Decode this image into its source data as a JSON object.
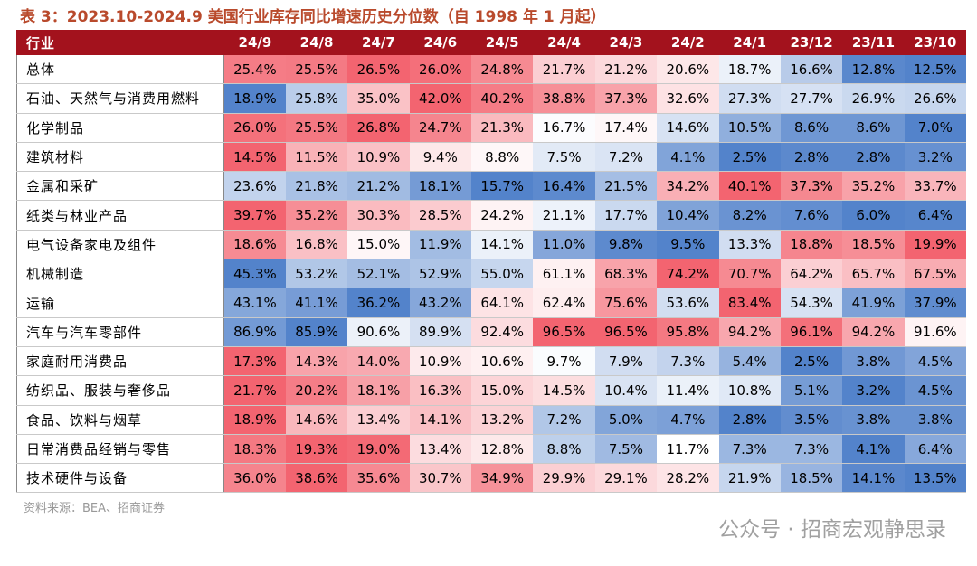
{
  "title": "表 3：2023.10-2024.9 美国行业库存同比增速历史分位数（自 1998 年 1 月起）",
  "table": {
    "header": [
      "行业",
      "24/9",
      "24/8",
      "24/7",
      "24/6",
      "24/5",
      "24/4",
      "24/3",
      "24/2",
      "24/1",
      "23/12",
      "23/11",
      "23/10"
    ],
    "rows": [
      [
        "总体",
        "25.4%",
        "25.5%",
        "26.5%",
        "26.0%",
        "24.8%",
        "21.7%",
        "21.2%",
        "20.6%",
        "18.7%",
        "16.6%",
        "12.8%",
        "12.5%"
      ],
      [
        "石油、天然气与消费用燃料",
        "18.9%",
        "25.8%",
        "35.0%",
        "42.0%",
        "40.2%",
        "38.8%",
        "37.3%",
        "32.6%",
        "27.3%",
        "27.7%",
        "26.9%",
        "26.6%"
      ],
      [
        "化学制品",
        "26.0%",
        "25.5%",
        "26.8%",
        "24.7%",
        "21.3%",
        "16.7%",
        "17.4%",
        "14.6%",
        "10.5%",
        "8.6%",
        "8.6%",
        "7.0%"
      ],
      [
        "建筑材料",
        "14.5%",
        "11.5%",
        "10.9%",
        "9.4%",
        "8.8%",
        "7.5%",
        "7.2%",
        "4.1%",
        "2.5%",
        "2.8%",
        "2.8%",
        "3.2%"
      ],
      [
        "金属和采矿",
        "23.6%",
        "21.8%",
        "21.2%",
        "18.1%",
        "15.7%",
        "16.4%",
        "21.5%",
        "34.2%",
        "40.1%",
        "37.3%",
        "35.2%",
        "33.7%"
      ],
      [
        "纸类与林业产品",
        "39.7%",
        "35.2%",
        "30.3%",
        "28.5%",
        "24.2%",
        "21.1%",
        "17.7%",
        "10.4%",
        "8.2%",
        "7.6%",
        "6.0%",
        "6.4%"
      ],
      [
        "电气设备家电及组件",
        "18.6%",
        "16.8%",
        "15.0%",
        "11.9%",
        "14.1%",
        "11.0%",
        "9.8%",
        "9.5%",
        "13.3%",
        "18.8%",
        "18.5%",
        "19.9%"
      ],
      [
        "机械制造",
        "45.3%",
        "53.2%",
        "52.1%",
        "52.9%",
        "55.0%",
        "61.1%",
        "68.3%",
        "74.2%",
        "70.7%",
        "64.2%",
        "65.7%",
        "67.5%"
      ],
      [
        "运输",
        "43.1%",
        "41.1%",
        "36.2%",
        "43.2%",
        "64.1%",
        "62.4%",
        "75.6%",
        "53.6%",
        "83.4%",
        "54.3%",
        "41.9%",
        "37.9%"
      ],
      [
        "汽车与汽车零部件",
        "86.9%",
        "85.9%",
        "90.6%",
        "89.9%",
        "92.4%",
        "96.5%",
        "96.5%",
        "95.8%",
        "94.2%",
        "96.1%",
        "94.2%",
        "91.6%"
      ],
      [
        "家庭耐用消费品",
        "17.3%",
        "14.3%",
        "14.0%",
        "10.9%",
        "10.6%",
        "9.7%",
        "7.9%",
        "7.3%",
        "5.4%",
        "2.5%",
        "3.8%",
        "4.5%"
      ],
      [
        "纺织品、服装与奢侈品",
        "21.7%",
        "20.2%",
        "18.1%",
        "16.3%",
        "15.0%",
        "14.5%",
        "10.4%",
        "11.4%",
        "10.8%",
        "5.1%",
        "3.2%",
        "4.5%"
      ],
      [
        "食品、饮料与烟草",
        "18.9%",
        "14.6%",
        "13.4%",
        "14.1%",
        "13.2%",
        "7.2%",
        "5.0%",
        "4.7%",
        "2.8%",
        "3.5%",
        "3.8%",
        "3.8%"
      ],
      [
        "日常消费品经销与零售",
        "18.3%",
        "19.3%",
        "19.0%",
        "13.4%",
        "12.8%",
        "8.8%",
        "7.5%",
        "11.7%",
        "7.3%",
        "7.3%",
        "4.1%",
        "6.4%"
      ],
      [
        "技术硬件与设备",
        "36.0%",
        "38.6%",
        "35.6%",
        "30.7%",
        "34.9%",
        "29.9%",
        "29.1%",
        "28.2%",
        "21.9%",
        "18.5%",
        "14.1%",
        "13.5%"
      ]
    ]
  },
  "source": "资料来源：BEA、招商证券",
  "watermark": "公众号 · 招商宏观静思录"
}
